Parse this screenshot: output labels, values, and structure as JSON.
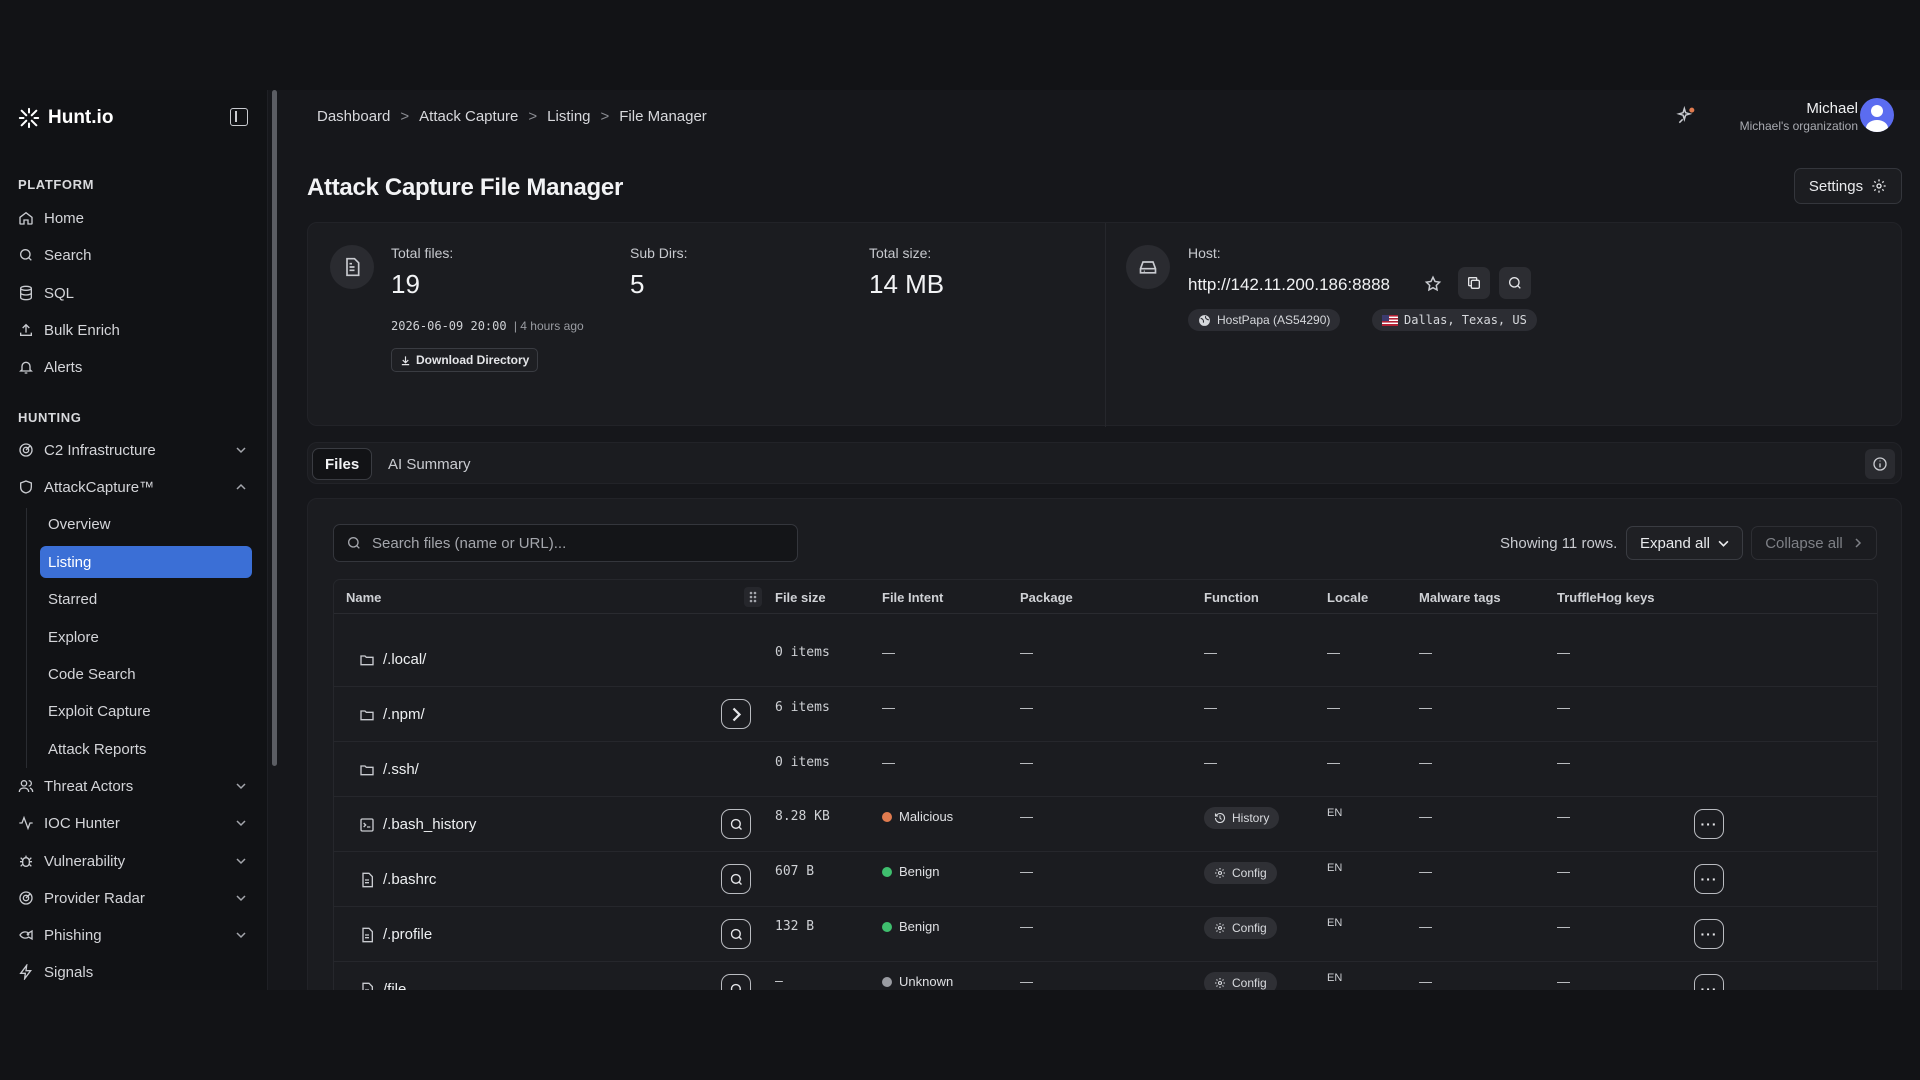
{
  "app": {
    "logo_text": "Hunt.io"
  },
  "sidebar": {
    "sections": [
      {
        "title": "PLATFORM",
        "items": [
          "Home",
          "Search",
          "SQL",
          "Bulk Enrich",
          "Alerts"
        ]
      },
      {
        "title": "HUNTING"
      }
    ],
    "hunting_items": [
      "C2 Infrastructure",
      "AttackCapture™",
      "Threat Actors",
      "IOC Hunter",
      "Vulnerability",
      "Provider Radar",
      "Phishing",
      "Signals"
    ],
    "attackcapture_subitems": [
      "Overview",
      "Listing",
      "Starred",
      "Explore",
      "Code Search",
      "Exploit Capture",
      "Attack Reports"
    ]
  },
  "breadcrumb": [
    "Dashboard",
    "Attack Capture",
    "Listing",
    "File Manager"
  ],
  "breadcrumb_sep": ">",
  "user": {
    "name": "Michael",
    "org": "Michael's organization"
  },
  "page": {
    "title": "Attack Capture File Manager",
    "settings_label": "Settings"
  },
  "stats": {
    "total_files_label": "Total files:",
    "total_files": "19",
    "subdirs_label": "Sub Dirs:",
    "subdirs": "5",
    "total_size_label": "Total size:",
    "total_size": "14 MB",
    "timestamp": "2026-06-09 20:00",
    "ago": "| 4 hours ago",
    "download_label": "Download Directory"
  },
  "host": {
    "label": "Host:",
    "url": "http://142.11.200.186:8888",
    "provider": "HostPapa (AS54290)",
    "location": "Dallas, Texas, US"
  },
  "tabs": [
    "Files",
    "AI Summary"
  ],
  "files_toolbar": {
    "search_placeholder": "Search files (name or URL)...",
    "showing": "Showing 11 rows.",
    "expand_all": "Expand all",
    "collapse_all": "Collapse all"
  },
  "columns": [
    "Name",
    "File size",
    "File Intent",
    "Package",
    "Function",
    "Locale",
    "Malware tags",
    "TruffleHog keys"
  ],
  "rows": [
    {
      "name": "/.local/",
      "type": "folder",
      "size": "0 items",
      "intent": "—",
      "package": "—",
      "function": "—",
      "locale": "—",
      "malware": "—",
      "truffle": "—"
    },
    {
      "name": "/.npm/",
      "type": "folder",
      "size": "6 items",
      "intent": "—",
      "package": "—",
      "function": "—",
      "locale": "—",
      "malware": "—",
      "truffle": "—",
      "expandable": true
    },
    {
      "name": "/.ssh/",
      "type": "folder",
      "size": "0 items",
      "intent": "—",
      "package": "—",
      "function": "—",
      "locale": "—",
      "malware": "—",
      "truffle": "—"
    },
    {
      "name": "/.bash_history",
      "type": "terminal",
      "size": "8.28 KB",
      "intent": "Malicious",
      "intent_color": "#e07b4f",
      "package": "—",
      "function": "History",
      "locale": "EN",
      "malware": "—",
      "truffle": "—"
    },
    {
      "name": "/.bashrc",
      "type": "file",
      "size": "607 B",
      "intent": "Benign",
      "intent_color": "#3fbf6e",
      "package": "—",
      "function": "Config",
      "locale": "EN",
      "malware": "—",
      "truffle": "—"
    },
    {
      "name": "/.profile",
      "type": "file",
      "size": "132 B",
      "intent": "Benign",
      "intent_color": "#3fbf6e",
      "package": "—",
      "function": "Config",
      "locale": "EN",
      "malware": "—",
      "truffle": "—"
    },
    {
      "name": "/file",
      "type": "file",
      "size": "—",
      "intent": "Unknown",
      "intent_color": "#9a9ca2",
      "package": "—",
      "function": "Config",
      "locale": "EN",
      "malware": "—",
      "truffle": "—"
    }
  ],
  "more_label": "···",
  "colors": {
    "accent": "#3b6fd6",
    "malicious": "#e07b4f",
    "benign": "#3fbf6e",
    "unknown": "#9a9ca2"
  }
}
